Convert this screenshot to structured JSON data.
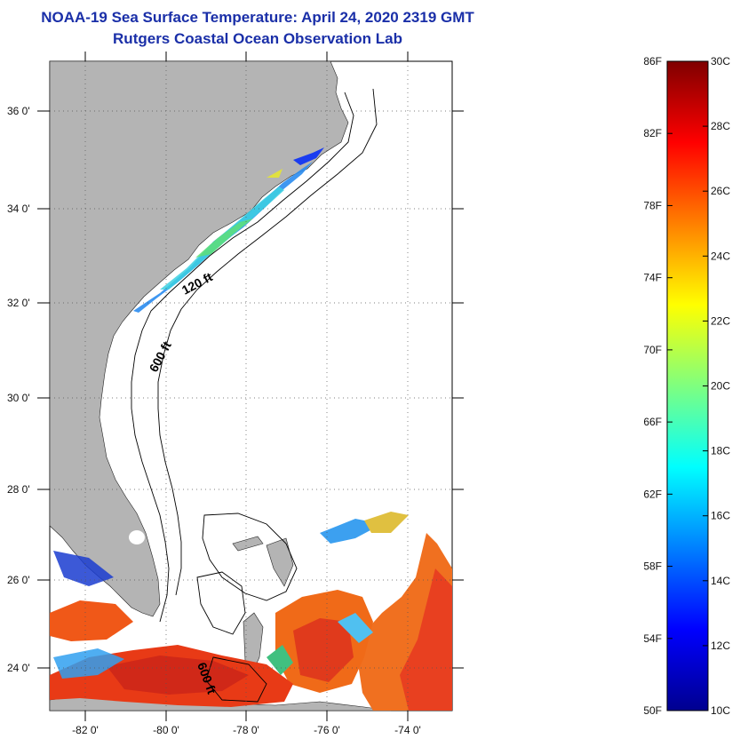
{
  "title_line1": "NOAA-19 Sea Surface Temperature:  April 24, 2020 2319 GMT",
  "title_line2": "Rutgers Coastal Ocean Observation Lab",
  "map": {
    "lat_labels": [
      "36 0'",
      "34 0'",
      "32 0'",
      "30 0'",
      "28 0'",
      "26 0'",
      "24 0'"
    ],
    "lon_labels": [
      "-82 0'",
      "-80 0'",
      "-78 0'",
      "-76 0'",
      "-74 0'"
    ],
    "contour_labels": [
      "120 ft",
      "600 ft",
      "600 ft"
    ],
    "land_color": "#b4b4b4",
    "grid": "dotted"
  },
  "colorbar": {
    "f_labels": [
      "86F",
      "82F",
      "78F",
      "74F",
      "70F",
      "66F",
      "62F",
      "58F",
      "54F",
      "50F"
    ],
    "c_labels": [
      "30C",
      "28C",
      "26C",
      "24C",
      "22C",
      "20C",
      "18C",
      "16C",
      "14C",
      "12C",
      "10C"
    ],
    "colormap": "jet",
    "range_c": [
      10,
      30
    ]
  }
}
